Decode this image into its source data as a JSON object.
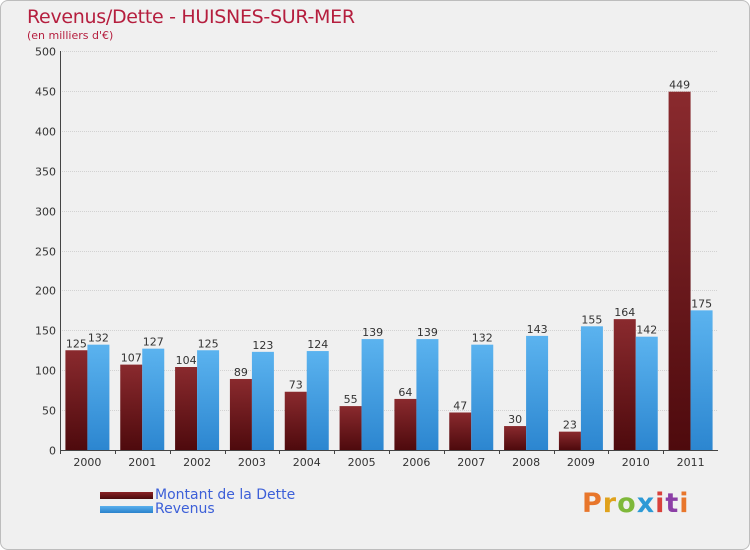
{
  "header": {
    "title": "Revenus/Dette - HUISNES-SUR-MER",
    "subtitle": "(en milliers d'€)"
  },
  "logo": {
    "text": "Proxiti",
    "colors": [
      "#e8762b",
      "#e0a21c",
      "#7fb83a",
      "#2d9ad6",
      "#d9413b",
      "#8c3fa6",
      "#e8762b"
    ]
  },
  "chart_data": {
    "type": "bar",
    "categories": [
      "2000",
      "2001",
      "2002",
      "2003",
      "2004",
      "2005",
      "2006",
      "2007",
      "2008",
      "2009",
      "2010",
      "2011"
    ],
    "series": [
      {
        "name": "Montant de la Dette",
        "color": "#7a1a1e",
        "values": [
          125,
          107,
          104,
          89,
          73,
          55,
          64,
          47,
          30,
          23,
          164,
          449
        ]
      },
      {
        "name": "Revenus",
        "color": "#3d9be3",
        "values": [
          132,
          127,
          125,
          123,
          124,
          139,
          139,
          132,
          143,
          155,
          142,
          175
        ]
      }
    ],
    "ylim": [
      0,
      500
    ],
    "yticks": [
      0,
      50,
      100,
      150,
      200,
      250,
      300,
      350,
      400,
      450,
      500
    ],
    "grid": true,
    "legend_position": "bottom-left"
  }
}
